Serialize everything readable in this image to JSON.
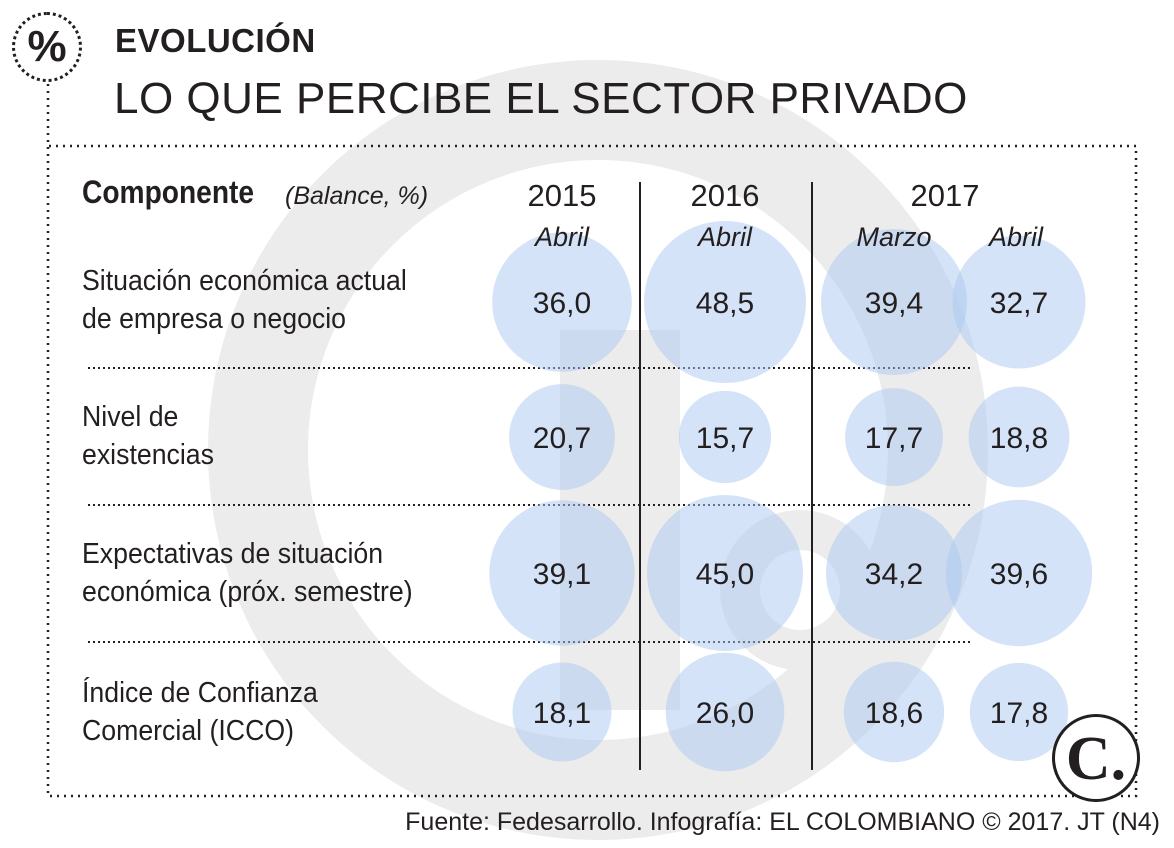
{
  "header": {
    "badge": "%",
    "kicker": "EVOLUCIÓN",
    "title": "LO QUE PERCIBE EL SECTOR PRIVADO"
  },
  "footer": {
    "source": "Fuente: Fedesarrollo. Infografía: EL COLOMBIANO © 2017. JT (N4)",
    "logo_letter": "C."
  },
  "colors": {
    "bubble": "#a9c8ef",
    "ink": "#231f20",
    "watermark": "#ececec"
  },
  "chart_data": {
    "type": "table",
    "title": "LO QUE PERCIBE EL SECTOR PRIVADO",
    "header_label": "Componente",
    "header_sub": "(Balance, %)",
    "years": [
      "2015",
      "2016",
      "2017"
    ],
    "columns": [
      {
        "year": "2015",
        "month": "Abril"
      },
      {
        "year": "2016",
        "month": "Abril"
      },
      {
        "year": "2017",
        "month": "Marzo"
      },
      {
        "year": "2017",
        "month": "Abril"
      }
    ],
    "rows": [
      {
        "label": [
          "Situación económica actual",
          "de empresa o negocio"
        ],
        "values": [
          "36,0",
          "48,5",
          "39,4",
          "32,7"
        ]
      },
      {
        "label": [
          "Nivel de",
          "existencias"
        ],
        "values": [
          "20,7",
          "15,7",
          "17,7",
          "18,8"
        ]
      },
      {
        "label": [
          "Expectativas de situación",
          "económica (próx. semestre)"
        ],
        "values": [
          "39,1",
          "45,0",
          "34,2",
          "39,6"
        ]
      },
      {
        "label": [
          "Índice de Confianza",
          "Comercial (ICCO)"
        ],
        "values": [
          "18,1",
          "26,0",
          "18,6",
          "17,8"
        ]
      }
    ]
  }
}
